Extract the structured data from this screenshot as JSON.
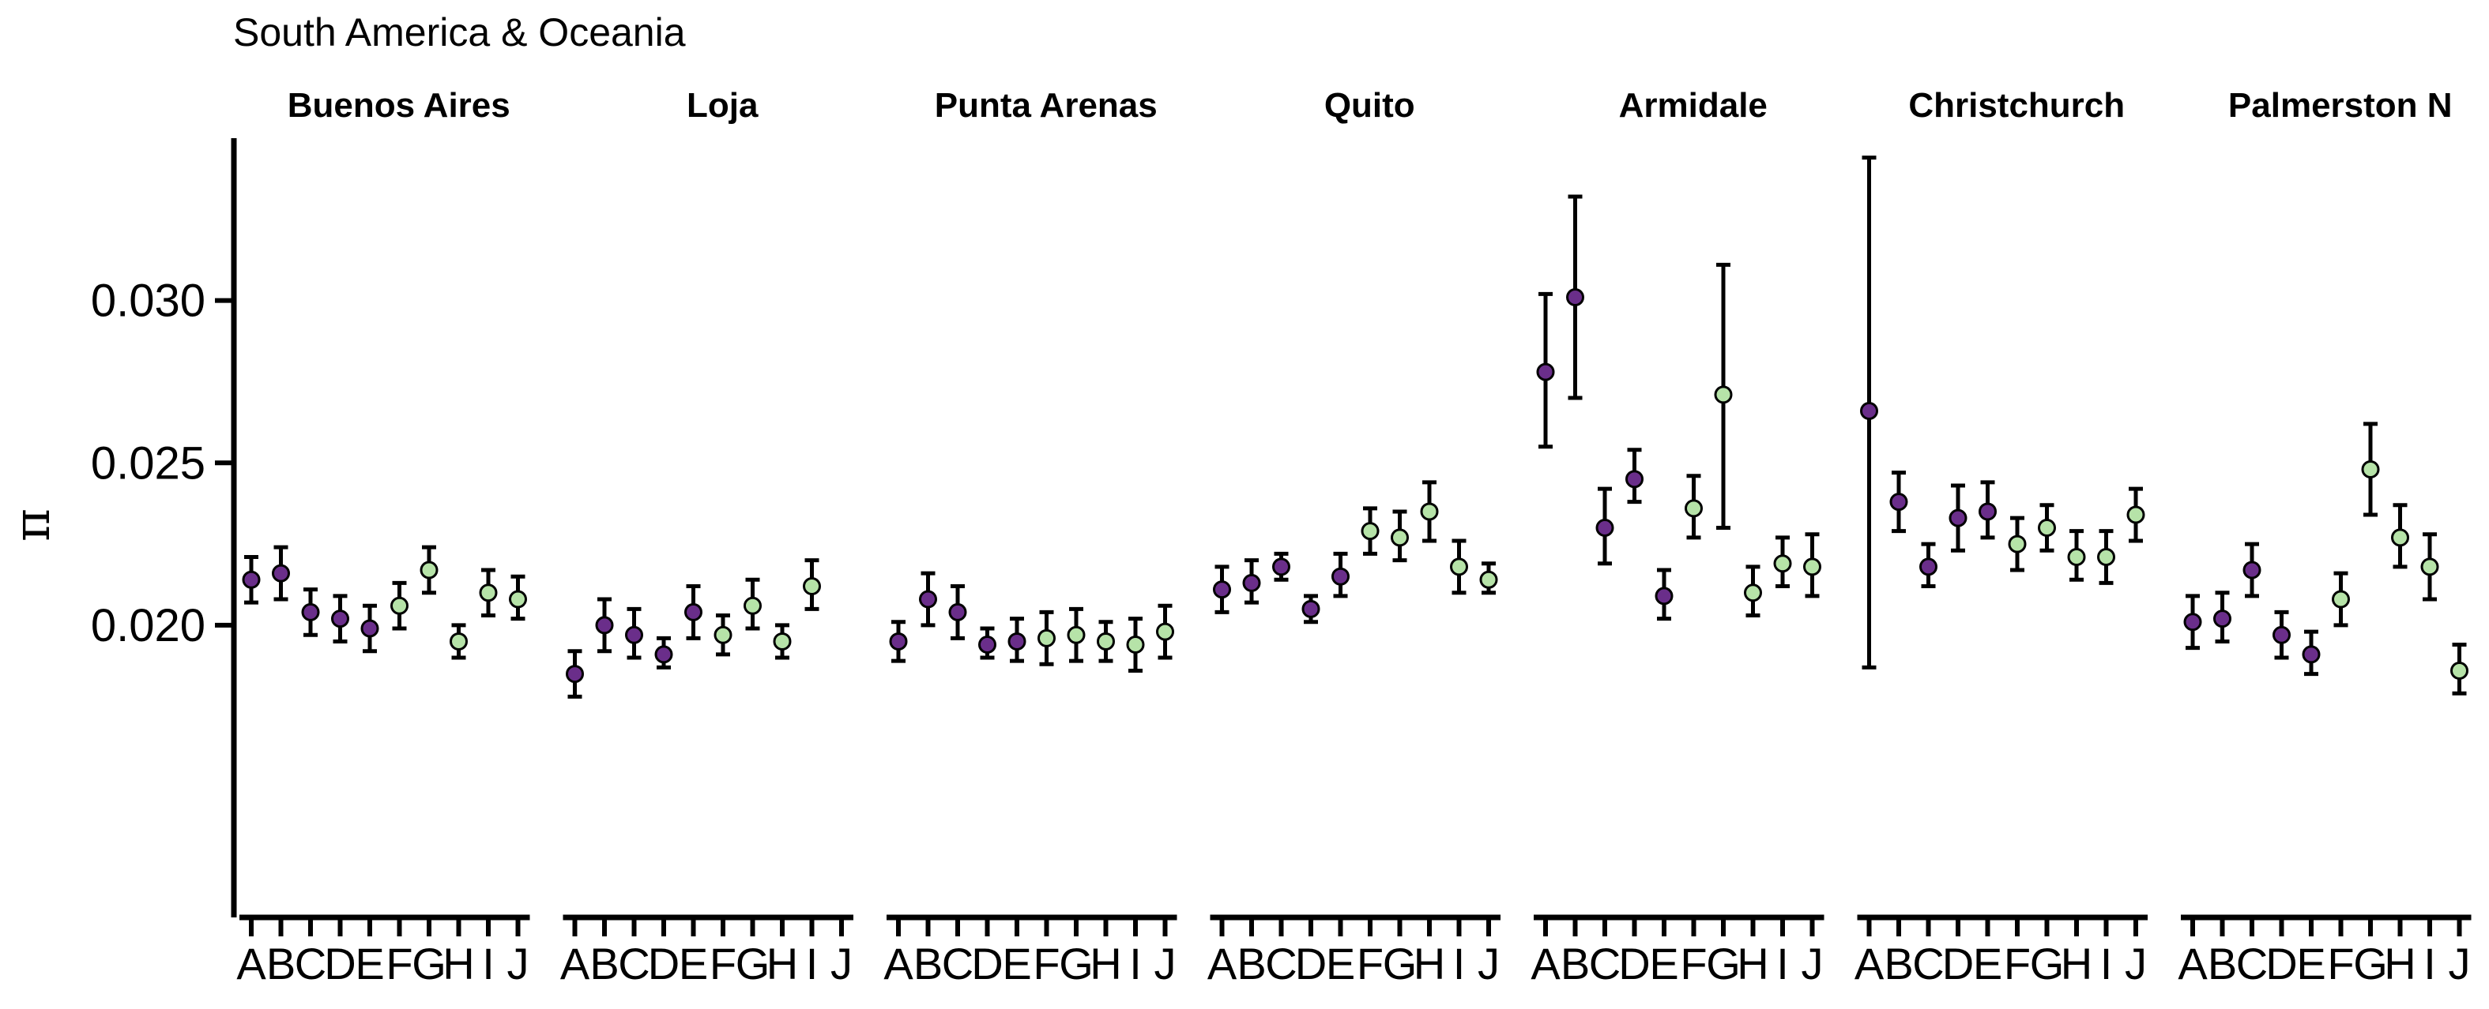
{
  "chart_data": {
    "type": "scatter",
    "title": "South America & Oceania",
    "ylabel": "π",
    "xlabel": "",
    "ylim": [
      0.011,
      0.035
    ],
    "yticks": [
      0.02,
      0.025,
      0.03
    ],
    "ytick_labels": [
      "0.020",
      "0.025",
      "0.030"
    ],
    "grid": false,
    "legend": "none",
    "categories": [
      "A",
      "B",
      "C",
      "D",
      "E",
      "F",
      "G",
      "H",
      "I",
      "J"
    ],
    "group_colors": {
      "purple": "#6a2e8a",
      "green": "#b6e3a8"
    },
    "point_groups": [
      "purple",
      "purple",
      "purple",
      "purple",
      "purple",
      "green",
      "green",
      "green",
      "green",
      "green"
    ],
    "facets": [
      {
        "name": "Buenos Aires",
        "values": [
          0.0214,
          0.0216,
          0.0204,
          0.0202,
          0.0199,
          0.0206,
          0.0217,
          0.0195,
          0.021,
          0.0208
        ],
        "lower": [
          0.0207,
          0.0208,
          0.0197,
          0.0195,
          0.0192,
          0.0199,
          0.021,
          0.019,
          0.0203,
          0.0202
        ],
        "upper": [
          0.0221,
          0.0224,
          0.0211,
          0.0209,
          0.0206,
          0.0213,
          0.0224,
          0.02,
          0.0217,
          0.0215
        ]
      },
      {
        "name": "Loja",
        "values": [
          0.0185,
          0.02,
          0.0197,
          0.0191,
          0.0204,
          0.0197,
          0.0206,
          0.0195,
          0.0212,
          null
        ],
        "lower": [
          0.0178,
          0.0192,
          0.019,
          0.0187,
          0.0196,
          0.0191,
          0.0199,
          0.019,
          0.0205,
          null
        ],
        "upper": [
          0.0192,
          0.0208,
          0.0205,
          0.0196,
          0.0212,
          0.0203,
          0.0214,
          0.02,
          0.022,
          null
        ]
      },
      {
        "name": "Punta Arenas",
        "values": [
          0.0195,
          0.0208,
          0.0204,
          0.0194,
          0.0195,
          0.0196,
          0.0197,
          0.0195,
          0.0194,
          0.0198
        ],
        "lower": [
          0.0189,
          0.02,
          0.0196,
          0.019,
          0.0189,
          0.0188,
          0.0189,
          0.0189,
          0.0186,
          0.019
        ],
        "upper": [
          0.0201,
          0.0216,
          0.0212,
          0.0199,
          0.0202,
          0.0204,
          0.0205,
          0.0201,
          0.0202,
          0.0206
        ]
      },
      {
        "name": "Quito",
        "values": [
          0.0211,
          0.0213,
          0.0218,
          0.0205,
          0.0215,
          0.0229,
          0.0227,
          0.0235,
          0.0218,
          0.0214
        ],
        "lower": [
          0.0204,
          0.0207,
          0.0214,
          0.0201,
          0.0209,
          0.0222,
          0.022,
          0.0226,
          0.021,
          0.021
        ],
        "upper": [
          0.0218,
          0.022,
          0.0222,
          0.0209,
          0.0222,
          0.0236,
          0.0235,
          0.0244,
          0.0226,
          0.0219
        ]
      },
      {
        "name": "Armidale",
        "values": [
          0.0278,
          0.0301,
          0.023,
          0.0245,
          0.0209,
          0.0236,
          0.0271,
          0.021,
          0.0219,
          0.0218
        ],
        "lower": [
          0.0255,
          0.027,
          0.0219,
          0.0238,
          0.0202,
          0.0227,
          0.023,
          0.0203,
          0.0212,
          0.0209
        ],
        "upper": [
          0.0302,
          0.0332,
          0.0242,
          0.0254,
          0.0217,
          0.0246,
          0.0311,
          0.0218,
          0.0227,
          0.0228
        ]
      },
      {
        "name": "Christchurch",
        "values": [
          0.0266,
          0.0238,
          0.0218,
          0.0233,
          0.0235,
          0.0225,
          0.023,
          0.0221,
          0.0221,
          0.0234
        ],
        "lower": [
          0.0187,
          0.0229,
          0.0212,
          0.0223,
          0.0227,
          0.0217,
          0.0223,
          0.0214,
          0.0213,
          0.0226
        ],
        "upper": [
          0.0344,
          0.0247,
          0.0225,
          0.0243,
          0.0244,
          0.0233,
          0.0237,
          0.0229,
          0.0229,
          0.0242
        ]
      },
      {
        "name": "Palmerston N",
        "values": [
          0.0201,
          0.0202,
          0.0217,
          0.0197,
          0.0191,
          0.0208,
          0.0248,
          0.0227,
          0.0218,
          0.0186
        ],
        "lower": [
          0.0193,
          0.0195,
          0.0209,
          0.019,
          0.0185,
          0.02,
          0.0234,
          0.0218,
          0.0208,
          0.0179
        ],
        "upper": [
          0.0209,
          0.021,
          0.0225,
          0.0204,
          0.0198,
          0.0216,
          0.0262,
          0.0237,
          0.0228,
          0.0194
        ]
      }
    ]
  }
}
